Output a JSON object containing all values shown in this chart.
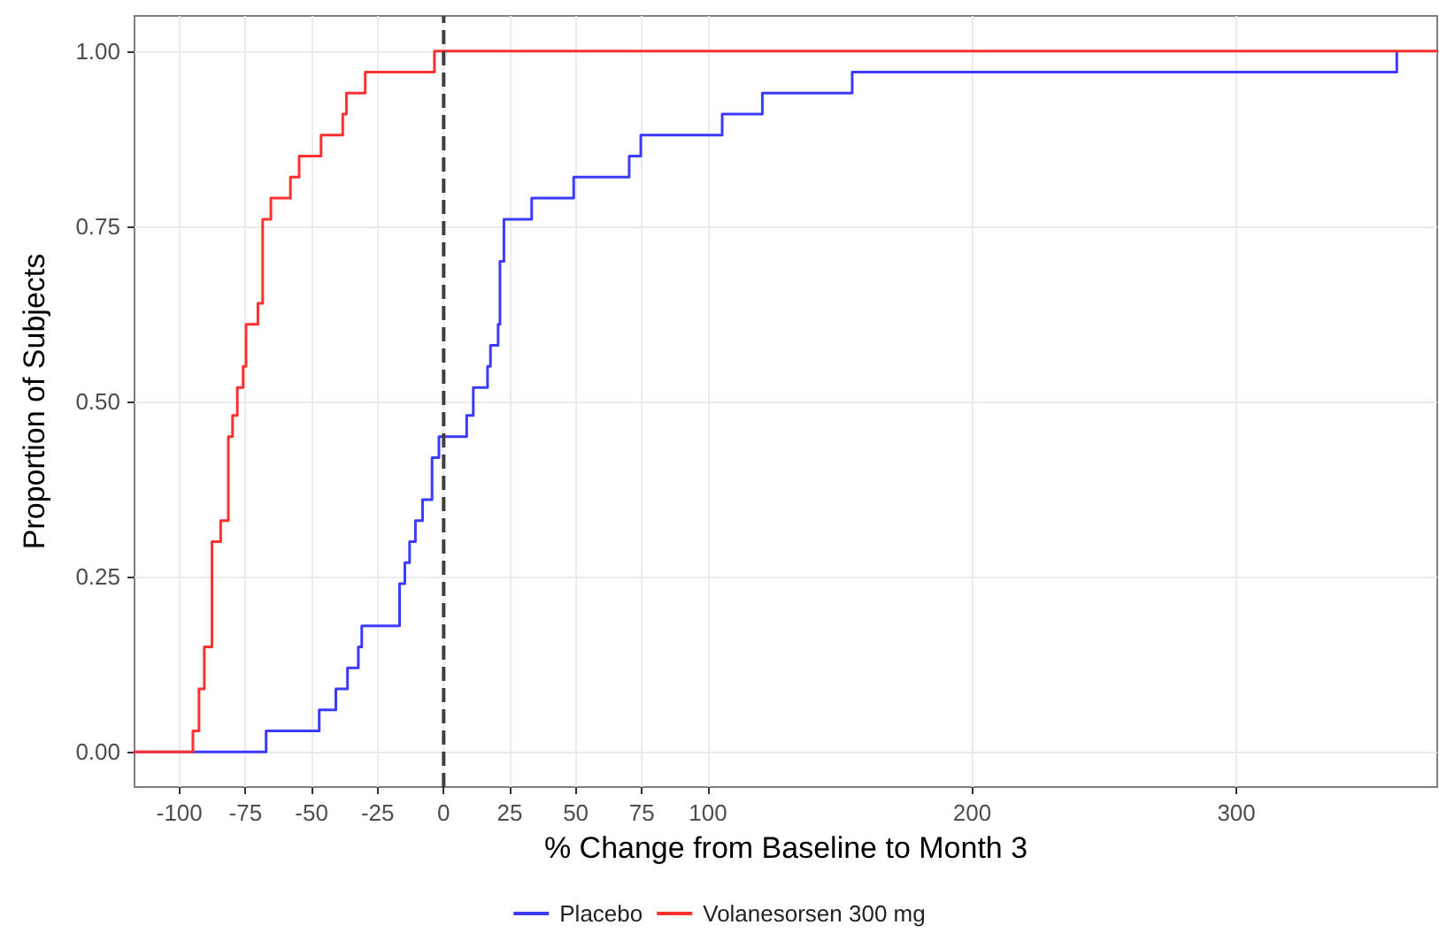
{
  "chart_data": {
    "type": "step",
    "xlabel": "% Change from Baseline to Month 3",
    "ylabel": "Proportion of Subjects",
    "xlim": [
      -117,
      376
    ],
    "ylim": [
      -0.05,
      1.05
    ],
    "xticks": [
      -100,
      -75,
      -50,
      -25,
      0,
      25,
      50,
      75,
      100,
      200,
      300
    ],
    "yticks": [
      {
        "value": 0,
        "label": "0.00"
      },
      {
        "value": 0.25,
        "label": "0.25"
      },
      {
        "value": 0.5,
        "label": "0.50"
      },
      {
        "value": 0.75,
        "label": "0.75"
      },
      {
        "value": 1,
        "label": "1.00"
      }
    ],
    "grid": true,
    "legend": "bottom",
    "line_style": "solid",
    "ref_lines": [
      {
        "axis": "x",
        "value": 0,
        "label": null,
        "color": "#404040",
        "line_style": "dashed"
      }
    ],
    "series": [
      {
        "name": "Placebo",
        "color": "#3b3bff",
        "x": [
          -117,
          -67.2,
          -47.1,
          -40.8,
          -36.4,
          -32.3,
          -31,
          -16.7,
          -14.7,
          -12.9,
          -10.7,
          -8,
          -4.4,
          -1.8,
          8.7,
          11.2,
          16.6,
          17.7,
          20.6,
          21.3,
          22.8,
          33.3,
          49.2,
          70.2,
          74.6,
          105.4,
          120.6,
          154.6,
          360.7
        ],
        "values": [
          0,
          0.03,
          0.06,
          0.09,
          0.12,
          0.15,
          0.18,
          0.24,
          0.27,
          0.3,
          0.33,
          0.36,
          0.42,
          0.45,
          0.48,
          0.52,
          0.55,
          0.58,
          0.61,
          0.7,
          0.76,
          0.79,
          0.82,
          0.85,
          0.88,
          0.91,
          0.94,
          0.97,
          1
        ]
      },
      {
        "name": "Volanesorsen 300 mg",
        "color": "#ff3030",
        "x": [
          -117,
          -94.9,
          -92.6,
          -90.6,
          -87.7,
          -84.4,
          -81.5,
          -79.9,
          -78.1,
          -75.9,
          -74.8,
          -70.3,
          -68.5,
          -65.4,
          -58,
          -54.7,
          -46.4,
          -38.2,
          -36.8,
          -29.7,
          -3.5,
          376
        ],
        "values": [
          0,
          0.03,
          0.09,
          0.15,
          0.3,
          0.33,
          0.45,
          0.48,
          0.52,
          0.55,
          0.61,
          0.64,
          0.76,
          0.79,
          0.82,
          0.85,
          0.88,
          0.91,
          0.94,
          0.97,
          1,
          1
        ]
      }
    ]
  }
}
